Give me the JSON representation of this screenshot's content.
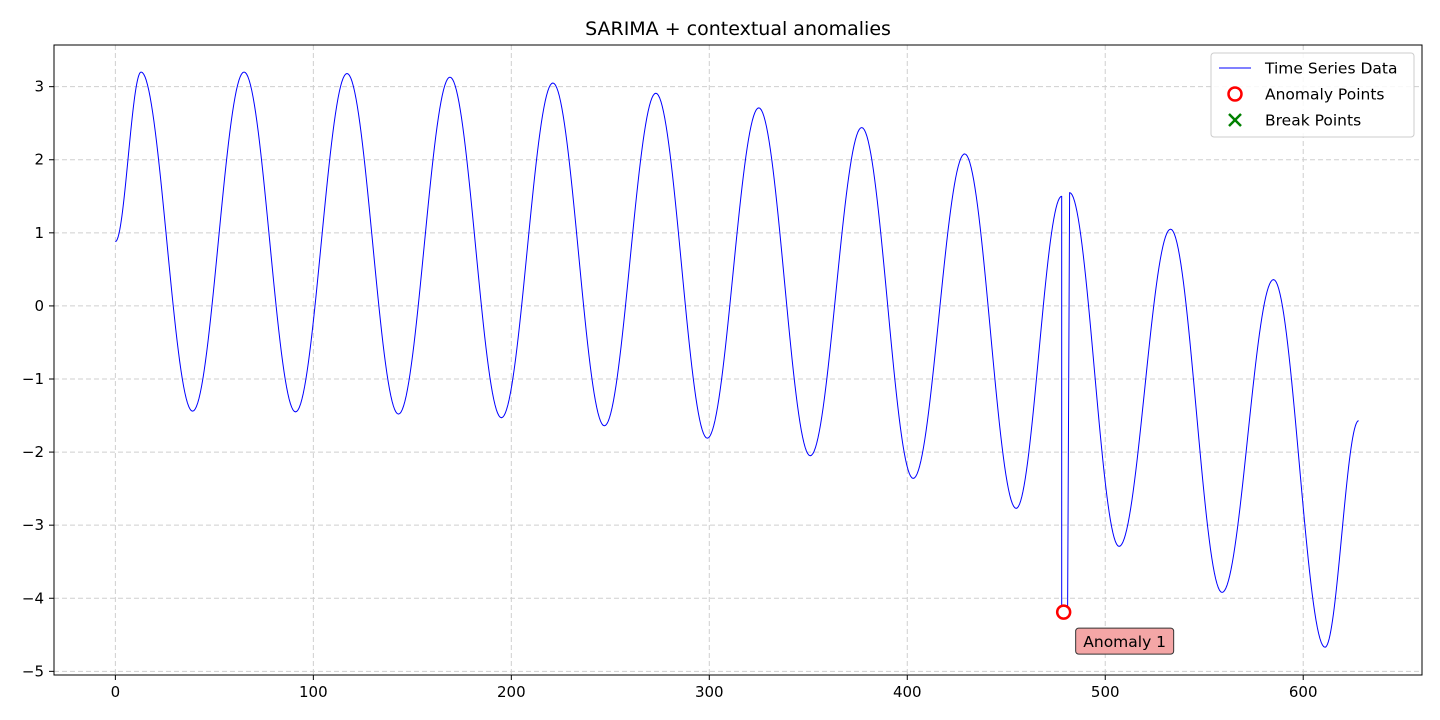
{
  "chart_data": {
    "type": "line",
    "title": "SARIMA + contextual anomalies",
    "xlabel": "",
    "ylabel": "",
    "xlim": [
      -31,
      660
    ],
    "ylim": [
      -5.05,
      3.57
    ],
    "xticks": [
      0,
      100,
      200,
      300,
      400,
      500,
      600
    ],
    "yticks": [
      -5,
      -4,
      -3,
      -2,
      -1,
      0,
      1,
      2,
      3
    ],
    "grid": true,
    "legend_position": "top-right",
    "series": [
      {
        "name": "Time Series Data",
        "color": "#0000ff",
        "keypoints": [
          [
            0,
            0.88
          ],
          [
            13,
            3.2
          ],
          [
            39,
            -1.44
          ],
          [
            65,
            3.2
          ],
          [
            91,
            -1.45
          ],
          [
            117,
            3.18
          ],
          [
            143,
            -1.48
          ],
          [
            169,
            3.13
          ],
          [
            195,
            -1.53
          ],
          [
            221,
            3.05
          ],
          [
            247,
            -1.64
          ],
          [
            273,
            2.91
          ],
          [
            299,
            -1.81
          ],
          [
            325,
            2.71
          ],
          [
            351,
            -2.05
          ],
          [
            377,
            2.44
          ],
          [
            403,
            -2.36
          ],
          [
            429,
            2.08
          ],
          [
            455,
            -2.77
          ],
          [
            478,
            1.5
          ],
          [
            478,
            -4.1
          ],
          [
            481,
            -4.1
          ],
          [
            482,
            1.55
          ],
          [
            507,
            -3.29
          ],
          [
            533,
            1.05
          ],
          [
            559,
            -3.92
          ],
          [
            585,
            0.36
          ],
          [
            611,
            -4.67
          ],
          [
            628,
            -1.57
          ]
        ]
      }
    ],
    "anomaly_points": [
      {
        "x": 479,
        "y": -4.19,
        "label": "Anomaly 1"
      }
    ],
    "break_points": [],
    "legend": [
      {
        "label": "Time Series Data",
        "marker": "line",
        "color": "#0000ff"
      },
      {
        "label": "Anomaly Points",
        "marker": "circle",
        "color": "#ff0000"
      },
      {
        "label": "Break Points",
        "marker": "x",
        "color": "#008000"
      }
    ],
    "annotation_color": "#f4a6a6"
  }
}
